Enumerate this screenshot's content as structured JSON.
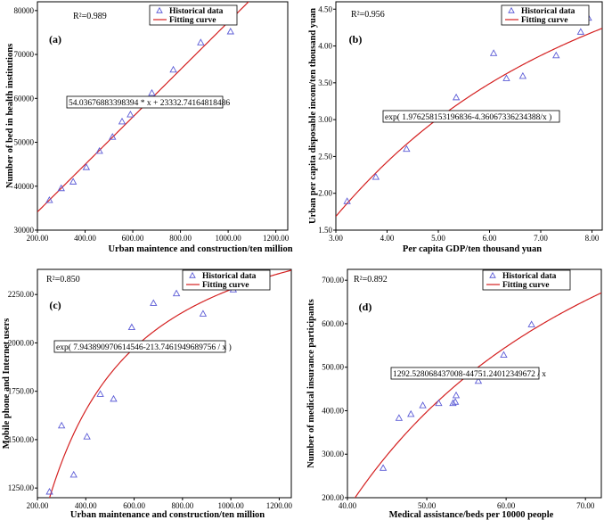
{
  "colors": {
    "points": "#5b5bd6",
    "curve": "#d42020",
    "frame": "#000000"
  },
  "chart_data": [
    {
      "type": "scatter",
      "panel_label": "(a)",
      "r2": "R²=0.989",
      "xlabel": "Urban maintence and construction/ten million",
      "ylabel": "Number of bed  in health institutions",
      "xlim": [
        200,
        1250
      ],
      "ylim": [
        30000,
        82000
      ],
      "xticks": [
        200,
        400,
        600,
        800,
        1000,
        1200
      ],
      "xtick_labels": [
        "200.00",
        "400.00",
        "600.00",
        "800.00",
        "1000.00",
        "1200.00"
      ],
      "yticks": [
        30000,
        40000,
        50000,
        60000,
        70000,
        80000
      ],
      "ytick_labels": [
        "30000",
        "40000",
        "50000",
        "60000",
        "70000",
        "80000"
      ],
      "legend": [
        "Historical data",
        "Fitting curve"
      ],
      "equation": "54.03676883398394 * x + 23332.74164818486",
      "fit": {
        "kind": "linear",
        "a": 54.03676883398394,
        "b": 23332.74164818486
      },
      "points": [
        [
          250,
          36800
        ],
        [
          300,
          39500
        ],
        [
          350,
          41000
        ],
        [
          405,
          44300
        ],
        [
          460,
          48000
        ],
        [
          515,
          51200
        ],
        [
          555,
          54700
        ],
        [
          590,
          56300
        ],
        [
          680,
          61200
        ],
        [
          770,
          66500
        ],
        [
          885,
          72700
        ],
        [
          1010,
          75200
        ]
      ]
    },
    {
      "type": "scatter",
      "panel_label": "(b)",
      "r2": "R²=0.956",
      "xlabel": "Per capita GDP/ten thousand yuan",
      "ylabel": "Urban per capita disposable incom/ten thousand yuan",
      "xlim": [
        3.0,
        8.2
      ],
      "ylim": [
        1.5,
        4.6
      ],
      "xticks": [
        3,
        4,
        5,
        6,
        7,
        8
      ],
      "xtick_labels": [
        "3.00",
        "4.00",
        "5.00",
        "6.00",
        "7.00",
        "8.00"
      ],
      "yticks": [
        1.5,
        2.0,
        2.5,
        3.0,
        3.5,
        4.0,
        4.5
      ],
      "ytick_labels": [
        "1.50",
        "2.00",
        "2.50",
        "3.00",
        "3.50",
        "4.00",
        "4.50"
      ],
      "legend": [
        "Historical data",
        "Fitting curve"
      ],
      "equation": "exp( 1.976258153196836-4.360673362343 88/x )",
      "equation_display": "exp( 1.976258153196836-4.36067336234388/x )",
      "fit": {
        "kind": "exp",
        "a": 1.976258153196836,
        "b": -4.36067336234388
      },
      "points": [
        [
          3.22,
          1.89
        ],
        [
          3.78,
          2.22
        ],
        [
          4.38,
          2.6
        ],
        [
          4.88,
          3.0
        ],
        [
          5.35,
          3.3
        ],
        [
          6.08,
          3.9
        ],
        [
          6.33,
          3.56
        ],
        [
          6.65,
          3.59
        ],
        [
          7.3,
          3.87
        ],
        [
          7.78,
          4.19
        ],
        [
          7.93,
          4.38
        ]
      ]
    },
    {
      "type": "scatter",
      "panel_label": "(c)",
      "r2": "R²=0.850",
      "xlabel": "Urban maintenance and construction/ten million",
      "ylabel": "Mobile phone and Internet users",
      "xlim": [
        200,
        1250
      ],
      "ylim": [
        1200,
        2380
      ],
      "xticks": [
        200,
        400,
        600,
        800,
        1000,
        1200
      ],
      "xtick_labels": [
        "200.00",
        "400.00",
        "600.00",
        "800.00",
        "1000.00",
        "1200.00"
      ],
      "yticks": [
        1250,
        1500,
        1750,
        2000,
        2250
      ],
      "ytick_labels": [
        "1250.00",
        "1500.00",
        "1750.00",
        "2000.00",
        "2250.00"
      ],
      "legend": [
        "Historical data",
        "Fitting curve"
      ],
      "equation": "exp( 7.943890970614546-213.7461949689756 / x )",
      "fit": {
        "kind": "exp",
        "a": 7.943890970614546,
        "b": -213.7461949689756
      },
      "points": [
        [
          250,
          1230
        ],
        [
          300,
          1572
        ],
        [
          350,
          1318
        ],
        [
          405,
          1515
        ],
        [
          460,
          1735
        ],
        [
          515,
          1710
        ],
        [
          590,
          2080
        ],
        [
          680,
          2205
        ],
        [
          775,
          2255
        ],
        [
          885,
          2150
        ],
        [
          1010,
          2275
        ]
      ]
    },
    {
      "type": "scatter",
      "panel_label": "(d)",
      "r2": "R²=0.892",
      "xlabel": "Medical assistance/beds per 10000 people",
      "ylabel": "Number of medical insurance participants",
      "xlim": [
        40,
        72
      ],
      "ylim": [
        200,
        725
      ],
      "xticks": [
        40,
        50,
        60,
        70
      ],
      "xtick_labels": [
        "40.00",
        "50.00",
        "60.00",
        "70.00"
      ],
      "yticks": [
        200,
        300,
        400,
        500,
        600,
        700
      ],
      "ytick_labels": [
        "200.00",
        "300.00",
        "400.00",
        "500.00",
        "600.00",
        "700.00"
      ],
      "legend": [
        "Historical data",
        "Fitting curve"
      ],
      "equation": "1292.528068437008-44751.24012349672 / x",
      "fit": {
        "kind": "recip",
        "a": 1292.528068437008,
        "b": -44751.24012349672
      },
      "points": [
        [
          44.5,
          268
        ],
        [
          46.5,
          383
        ],
        [
          48,
          392
        ],
        [
          49.5,
          412
        ],
        [
          51.5,
          417
        ],
        [
          53.3,
          417
        ],
        [
          53.6,
          420
        ],
        [
          53.7,
          435
        ],
        [
          56.5,
          468
        ],
        [
          59.7,
          528
        ],
        [
          63.2,
          598
        ],
        [
          67.2,
          685
        ]
      ]
    }
  ]
}
